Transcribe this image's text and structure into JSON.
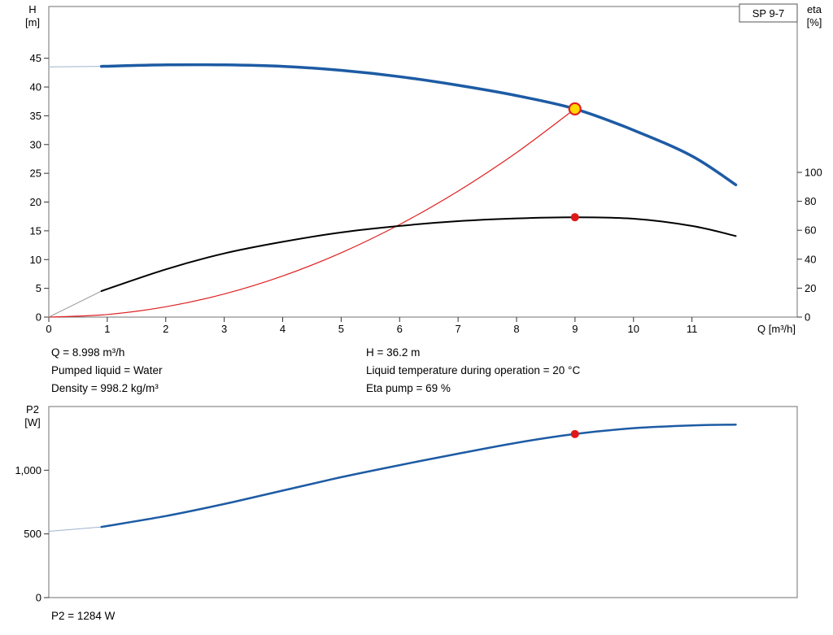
{
  "pump_model": "SP 9-7",
  "annotations": {
    "q": "Q = 8.998 m³/h",
    "pumped_liquid": "Pumped liquid = Water",
    "density": "Density = 998.2 kg/m³",
    "h": "H = 36.2 m",
    "liquid_temp": "Liquid temperature during operation = 20 °C",
    "eta_pump": "Eta pump = 69 %",
    "p2": "P2 = 1284 W"
  },
  "duty_point": {
    "q_m3h": 8.998,
    "h_m": 36.2,
    "eta_pct": 69,
    "p2_w": 1284
  },
  "colors": {
    "head_curve": "#1d5ba4",
    "eta_curve": "#000000",
    "system_curve": "#e02020",
    "p2_curve": "#1d5ba4",
    "marker_fill": "#ffd800",
    "marker_stroke": "#e02020",
    "dot": "#e01818",
    "frame": "#707070"
  },
  "chart_data": [
    {
      "type": "line",
      "name": "hq-eta-chart",
      "badge": "SP 9-7",
      "x_axis": {
        "label": "Q [m³/h]",
        "min": 0,
        "max": 12.8,
        "ticks": [
          0,
          1,
          2,
          3,
          4,
          5,
          6,
          7,
          8,
          9,
          10,
          11
        ]
      },
      "y_left": {
        "label": "H [m]",
        "label_lines": [
          "H",
          "[m]"
        ],
        "min": 0,
        "max": 54,
        "ticks": [
          0,
          5,
          10,
          15,
          20,
          25,
          30,
          35,
          40,
          45
        ]
      },
      "y_right": {
        "label": "eta [%]",
        "label_lines": [
          "eta",
          "[%]"
        ],
        "min": 0,
        "max": 214.6,
        "ticks": [
          0,
          20,
          40,
          60,
          80,
          100
        ]
      },
      "grid": false,
      "legend": "none",
      "series": [
        {
          "name": "head-curve-lead",
          "axis": "left",
          "color": "#9eb4cc",
          "width": 1,
          "points": [
            [
              0,
              43.5
            ],
            [
              0.9,
              43.6
            ]
          ]
        },
        {
          "name": "head-curve",
          "axis": "left",
          "color": "#1d5ba4",
          "width": 3.5,
          "points": [
            [
              0.9,
              43.6
            ],
            [
              2,
              43.85
            ],
            [
              3,
              43.85
            ],
            [
              4,
              43.6
            ],
            [
              5,
              42.9
            ],
            [
              6,
              41.8
            ],
            [
              7,
              40.3
            ],
            [
              8,
              38.5
            ],
            [
              8.998,
              36.2
            ],
            [
              10,
              32.5
            ],
            [
              11,
              28.0
            ],
            [
              11.75,
              23.0
            ]
          ]
        },
        {
          "name": "system-curve",
          "axis": "left",
          "color": "#e02020",
          "width": 1.2,
          "points": [
            [
              0,
              0
            ],
            [
              1,
              0.45
            ],
            [
              2,
              1.79
            ],
            [
              3,
              4.02
            ],
            [
              4,
              7.15
            ],
            [
              5,
              11.18
            ],
            [
              6,
              16.1
            ],
            [
              7,
              21.9
            ],
            [
              8,
              28.6
            ],
            [
              8.998,
              36.2
            ]
          ]
        },
        {
          "name": "eta-curve-lead",
          "axis": "right",
          "color": "#9a9a9a",
          "width": 1,
          "points": [
            [
              0,
              0
            ],
            [
              0.9,
              18
            ]
          ]
        },
        {
          "name": "eta-curve",
          "axis": "right",
          "color": "#000000",
          "width": 2,
          "points": [
            [
              0.9,
              18
            ],
            [
              2,
              33
            ],
            [
              3,
              44
            ],
            [
              4,
              52
            ],
            [
              5,
              58.5
            ],
            [
              6,
              63
            ],
            [
              7,
              66.3
            ],
            [
              8,
              68.2
            ],
            [
              8.998,
              69
            ],
            [
              10,
              68
            ],
            [
              11,
              63
            ],
            [
              11.75,
              56
            ]
          ]
        }
      ],
      "markers": [
        {
          "name": "duty-point-head",
          "axis": "left",
          "x": 8.998,
          "y": 36.2,
          "r": 7,
          "fill": "#ffd800",
          "stroke": "#e02020",
          "stroke_width": 2.2
        },
        {
          "name": "duty-point-eta",
          "axis": "right",
          "x": 8.998,
          "y": 69,
          "r": 5,
          "fill": "#e01818",
          "stroke": "none",
          "stroke_width": 0
        }
      ]
    },
    {
      "type": "line",
      "name": "p2-chart",
      "badge": "",
      "x_axis": {
        "label": "",
        "min": 0,
        "max": 12.8,
        "ticks": []
      },
      "y_left": {
        "label": "P2 [W]",
        "label_lines": [
          "P2",
          "[W]"
        ],
        "min": 0,
        "max": 1500,
        "ticks": [
          0,
          500,
          1000
        ],
        "tick_labels": [
          "0",
          "500",
          "1,000"
        ]
      },
      "grid": false,
      "legend": "none",
      "series": [
        {
          "name": "p2-curve-lead",
          "axis": "left",
          "color": "#9eb4cc",
          "width": 1,
          "points": [
            [
              0,
              520
            ],
            [
              0.9,
              555
            ]
          ]
        },
        {
          "name": "p2-curve",
          "axis": "left",
          "color": "#1d5ba4",
          "width": 2.5,
          "points": [
            [
              0.9,
              555
            ],
            [
              2,
              640
            ],
            [
              3,
              735
            ],
            [
              4,
              840
            ],
            [
              5,
              945
            ],
            [
              6,
              1040
            ],
            [
              7,
              1130
            ],
            [
              8,
              1215
            ],
            [
              8.998,
              1284
            ],
            [
              10,
              1330
            ],
            [
              11,
              1352
            ],
            [
              11.75,
              1358
            ]
          ]
        }
      ],
      "markers": [
        {
          "name": "duty-point-p2",
          "axis": "left",
          "x": 8.998,
          "y": 1284,
          "r": 5,
          "fill": "#e01818",
          "stroke": "none",
          "stroke_width": 0
        }
      ]
    }
  ]
}
